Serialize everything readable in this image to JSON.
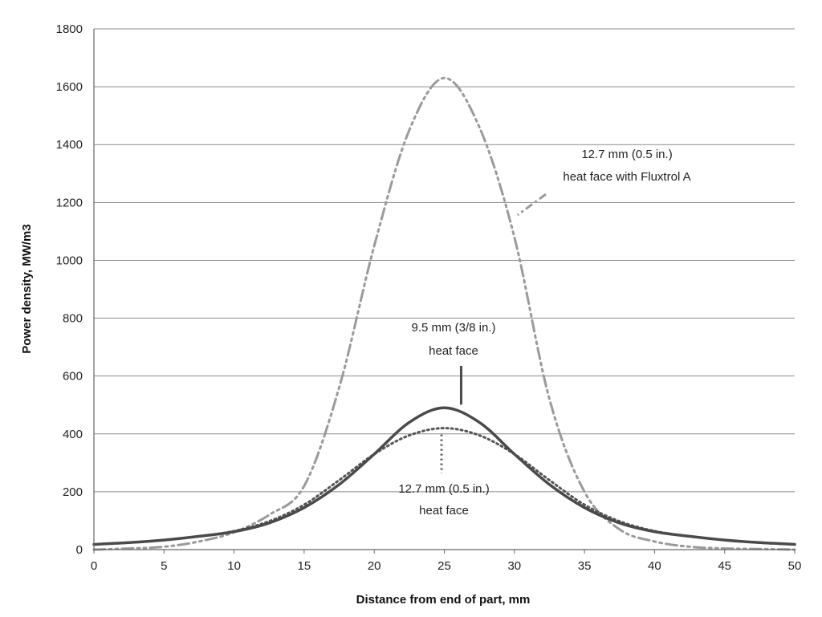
{
  "chart_data": {
    "type": "line",
    "title": "",
    "xlabel": "Distance from end of part, mm",
    "ylabel": "Power density, MW/m3",
    "xlim": [
      0,
      50
    ],
    "ylim": [
      0,
      1800
    ],
    "xticks": [
      "0",
      "5",
      "10",
      "15",
      "20",
      "25",
      "30",
      "35",
      "40",
      "45",
      "50"
    ],
    "yticks": [
      "0",
      "200",
      "400",
      "600",
      "800",
      "1000",
      "1200",
      "1400",
      "1600",
      "1800"
    ],
    "grid": "horizontal",
    "legend": "none",
    "x": [
      0,
      2.5,
      5,
      7.5,
      10,
      12.5,
      15,
      17.5,
      20,
      22.5,
      25,
      27.5,
      30,
      32.5,
      35,
      37.5,
      40,
      42.5,
      45,
      47.5,
      50
    ],
    "series": [
      {
        "name": "",
        "style": "solid",
        "color": "#4a4a4a",
        "values": [
          18,
          24,
          33,
          46,
          62,
          92,
          145,
          225,
          330,
          440,
          490,
          440,
          330,
          225,
          145,
          92,
          62,
          46,
          33,
          24,
          18
        ]
      },
      {
        "name": "",
        "style": "dotted",
        "color": "#555555",
        "values": [
          18,
          24,
          33,
          46,
          64,
          98,
          155,
          240,
          330,
          395,
          420,
          395,
          330,
          240,
          155,
          98,
          64,
          46,
          33,
          24,
          18
        ]
      },
      {
        "name": "",
        "style": "dash-dot-dot",
        "color": "#9a9a9a",
        "values": [
          0,
          4,
          10,
          28,
          60,
          120,
          220,
          560,
          1050,
          1450,
          1630,
          1460,
          1080,
          520,
          200,
          70,
          28,
          10,
          4,
          2,
          0
        ]
      }
    ],
    "annotations": [
      {
        "lines": [
          "12.7 mm (0.5 in.)",
          "heat face with Fluxtrol A"
        ],
        "target_x": 30,
        "target_y": 1140
      },
      {
        "lines": [
          "9.5 mm (3/8 in.)",
          "heat face"
        ],
        "target_x": 26.2,
        "target_y": 490
      },
      {
        "lines": [
          "12.7 mm (0.5 in.)",
          "heat face"
        ],
        "target_x": 24.8,
        "target_y": 420
      }
    ]
  }
}
